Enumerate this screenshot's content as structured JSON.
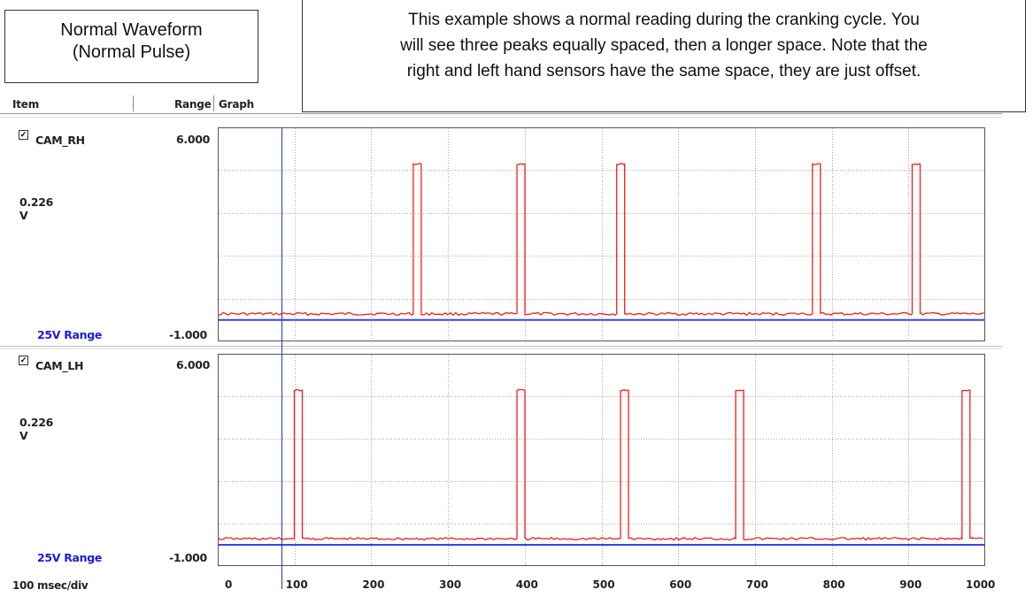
{
  "callouts": {
    "left": [
      "Normal Waveform",
      "(Normal Pulse)"
    ],
    "right": [
      "This example shows a normal reading during the cranking cycle. You",
      "will see three peaks equally spaced, then a longer space. Note that the",
      "right and left hand sensors have the same space, they are just offset."
    ]
  },
  "header": {
    "item": "Item",
    "range": "Range",
    "graph": "Graph"
  },
  "channels": [
    {
      "name": "CAM_RH",
      "checked": true,
      "value": "0.226",
      "unit": "V",
      "range_label": "25V Range",
      "max": "6.000",
      "min": "-1.000",
      "pulses": [
        260,
        395,
        525,
        780,
        910
      ]
    },
    {
      "name": "CAM_LH",
      "checked": true,
      "value": "0.226",
      "unit": "V",
      "range_label": "25V Range",
      "max": "6.000",
      "min": "-1.000",
      "pulses": [
        105,
        395,
        530,
        680,
        975
      ]
    }
  ],
  "x_axis": {
    "scale_label": "100 msec/div",
    "ticks": [
      "0",
      "100",
      "200",
      "300",
      "400",
      "500",
      "600",
      "700",
      "800",
      "900",
      "1000"
    ]
  },
  "colors": {
    "trace": "#ff1a1a",
    "baseline": "#3344ee",
    "cursor": "#2233dd",
    "grid": "#aaaaaa",
    "range_label": "#1a1adb"
  }
}
